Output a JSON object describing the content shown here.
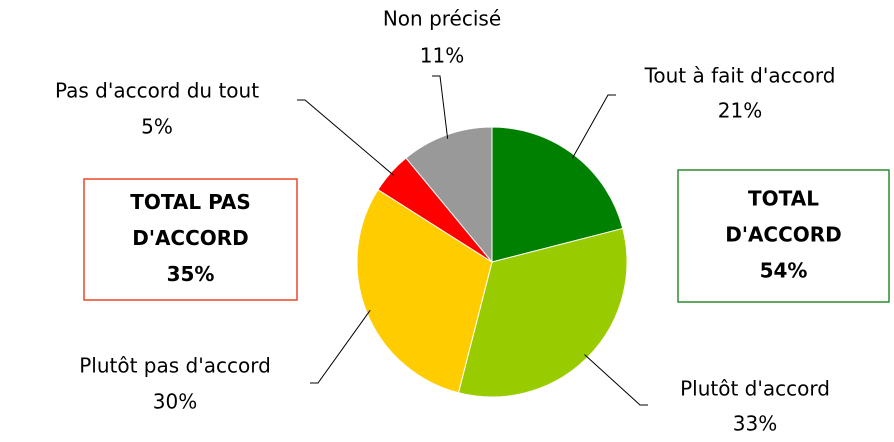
{
  "chart_data": {
    "type": "pie",
    "categories": [
      "Tout à fait d'accord",
      "Plutôt d'accord",
      "Plutôt pas d'accord",
      "Pas d'accord du tout",
      "Non précisé"
    ],
    "values": [
      21,
      33,
      30,
      5,
      11
    ],
    "value_labels": [
      "21%",
      "33%",
      "30%",
      "5%",
      "11%"
    ],
    "colors": [
      "#008000",
      "#99cc00",
      "#ffcc00",
      "#ff0000",
      "#999999"
    ],
    "annotations": [
      {
        "lines": [
          "TOTAL PAS",
          "D'ACCORD",
          "35%"
        ],
        "color": "#e8492a"
      },
      {
        "lines": [
          "TOTAL",
          "D'ACCORD",
          "54%"
        ],
        "color": "#2e8b2e"
      }
    ]
  }
}
